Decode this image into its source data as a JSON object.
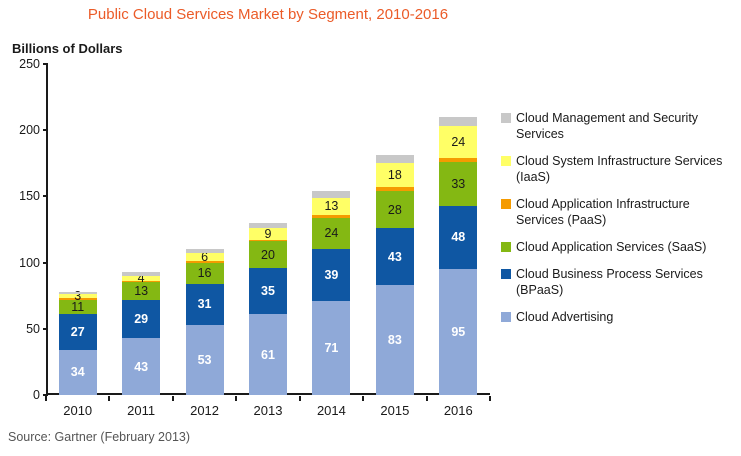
{
  "title": "Public Cloud Services Market by Segment, 2010-2016",
  "y_axis_title": "Billions of Dollars",
  "source": "Source: Gartner (February 2013)",
  "chart_data": {
    "type": "bar",
    "stacked": true,
    "title": "Public Cloud Services Market by Segment, 2010-2016",
    "ylabel": "Billions of Dollars",
    "xlabel": "",
    "categories": [
      "2010",
      "2011",
      "2012",
      "2013",
      "2014",
      "2015",
      "2016"
    ],
    "ylim": [
      0,
      250
    ],
    "yticks": [
      0,
      50,
      100,
      150,
      200,
      250
    ],
    "grid": false,
    "legend_position": "right",
    "series": [
      {
        "name": "Cloud Advertising",
        "color": "#8FA9D8",
        "label_style": "light",
        "show_labels": true,
        "values": [
          34,
          43,
          53,
          61,
          71,
          83,
          95
        ]
      },
      {
        "name": "Cloud Business Process Services (BPaaS)",
        "color": "#0F57A3",
        "label_style": "light",
        "show_labels": true,
        "values": [
          27,
          29,
          31,
          35,
          39,
          43,
          48
        ]
      },
      {
        "name": "Cloud Application Services (SaaS)",
        "color": "#84B813",
        "label_style": "dark",
        "show_labels": true,
        "values": [
          11,
          13,
          16,
          20,
          24,
          28,
          33
        ]
      },
      {
        "name": "Cloud Application Infrastructure Services (PaaS)",
        "color": "#F59B00",
        "label_style": "dark",
        "show_labels": false,
        "values": [
          1,
          1,
          1,
          1,
          2,
          3,
          3
        ],
        "note": "unlabeled thin segment, values estimated from pixels"
      },
      {
        "name": "Cloud System Infrastructure Services (IaaS)",
        "color": "#FFFF66",
        "label_style": "dark",
        "show_labels": true,
        "values": [
          3,
          4,
          6,
          9,
          13,
          18,
          24
        ]
      },
      {
        "name": "Cloud Management and Security Services",
        "color": "#C8C8C8",
        "label_style": "dark",
        "show_labels": false,
        "values": [
          2,
          3,
          3,
          4,
          5,
          6,
          7
        ],
        "note": "unlabeled top segment, values estimated from pixels"
      }
    ]
  },
  "legend": {
    "items": [
      {
        "label": "Cloud Management and Security Services",
        "color": "#C8C8C8"
      },
      {
        "label": "Cloud System Infrastructure Services (IaaS)",
        "color": "#FFFF66"
      },
      {
        "label": "Cloud Application Infrastructure Services (PaaS)",
        "color": "#F59B00"
      },
      {
        "label": "Cloud Application Services (SaaS)",
        "color": "#84B813"
      },
      {
        "label": "Cloud Business Process Services (BPaaS)",
        "color": "#0F57A3"
      },
      {
        "label": "Cloud Advertising",
        "color": "#8FA9D8"
      }
    ]
  }
}
